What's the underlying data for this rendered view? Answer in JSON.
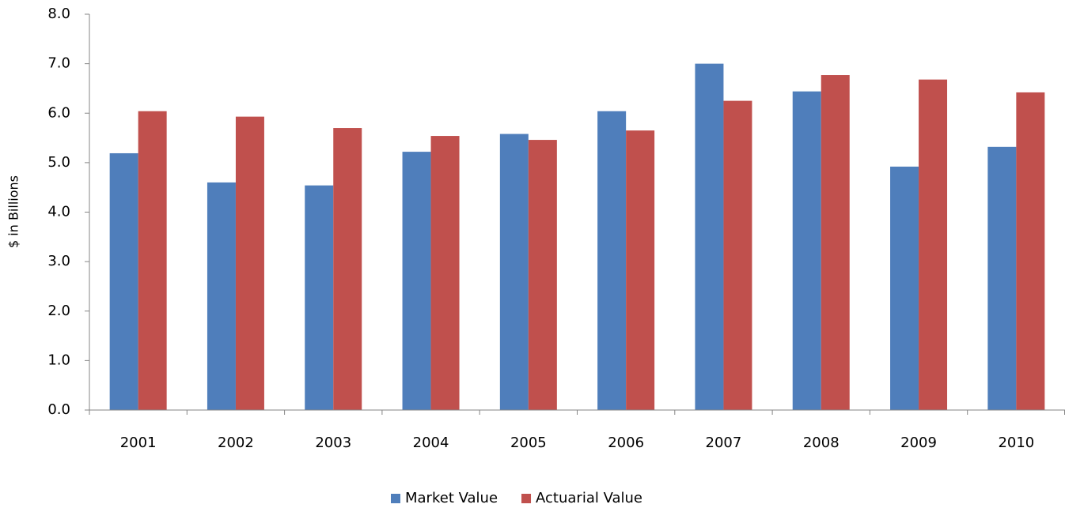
{
  "chart_data": {
    "type": "bar",
    "y_label": "$ in Billions",
    "categories": [
      "2001",
      "2002",
      "2003",
      "2004",
      "2005",
      "2006",
      "2007",
      "2008",
      "2009",
      "2010"
    ],
    "series": [
      {
        "name": "Market Value",
        "color": "#4f7ebb",
        "values": [
          5.19,
          4.6,
          4.54,
          5.22,
          5.58,
          6.04,
          7.0,
          6.44,
          4.92,
          5.32
        ]
      },
      {
        "name": "Actuarial Value",
        "color": "#c0504d",
        "values": [
          6.04,
          5.93,
          5.7,
          5.54,
          5.46,
          5.65,
          6.25,
          6.77,
          6.68,
          6.42
        ]
      }
    ],
    "ylim": [
      0,
      8
    ],
    "yticks": [
      {
        "value": 0,
        "label": "0.0"
      },
      {
        "value": 1,
        "label": "1.0"
      },
      {
        "value": 2,
        "label": "2.0"
      },
      {
        "value": 3,
        "label": "3.0"
      },
      {
        "value": 4,
        "label": "4.0"
      },
      {
        "value": 5,
        "label": "5.0"
      },
      {
        "value": 6,
        "label": "6.0"
      },
      {
        "value": 7,
        "label": "7.0"
      },
      {
        "value": 8,
        "label": "8.0"
      }
    ],
    "grid": false,
    "legend": "bottom"
  }
}
